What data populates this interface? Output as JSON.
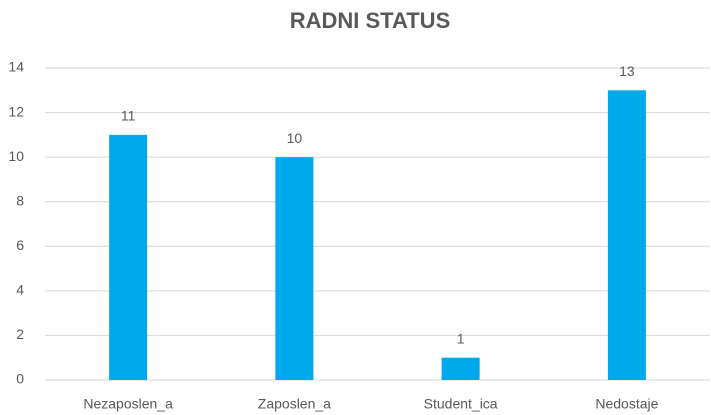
{
  "chart_data": {
    "type": "bar",
    "title": "RADNI STATUS",
    "categories": [
      "Nezaposlen_a",
      "Zaposlen_a",
      "Student_ica",
      "Nedostaje"
    ],
    "values": [
      11,
      10,
      1,
      13
    ],
    "color": "#00a9ec",
    "ylim": [
      0,
      14
    ],
    "yticks": [
      0,
      2,
      4,
      6,
      8,
      10,
      12,
      14
    ],
    "grid": true
  }
}
